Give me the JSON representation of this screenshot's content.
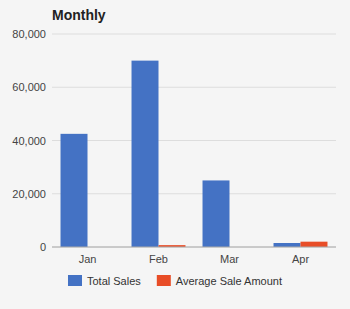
{
  "chart_data": {
    "type": "bar",
    "title": "Monthly",
    "categories": [
      "Jan",
      "Feb",
      "Mar",
      "Apr"
    ],
    "series": [
      {
        "name": "Total Sales",
        "color": "#4472C4",
        "values": [
          42500,
          70000,
          25000,
          1500
        ]
      },
      {
        "name": "Average Sale Amount",
        "color": "#E84D27",
        "values": [
          0,
          700,
          0,
          2000
        ]
      }
    ],
    "ylim": [
      0,
      80000
    ],
    "yticks": [
      0,
      {
        "value": 20000,
        "label": "20,000"
      },
      {
        "value": 40000,
        "label": "40,000"
      },
      {
        "value": 60000,
        "label": "60,000"
      },
      {
        "value": 80000,
        "label": "80,000"
      }
    ],
    "grid": true,
    "legend": "bottom"
  }
}
